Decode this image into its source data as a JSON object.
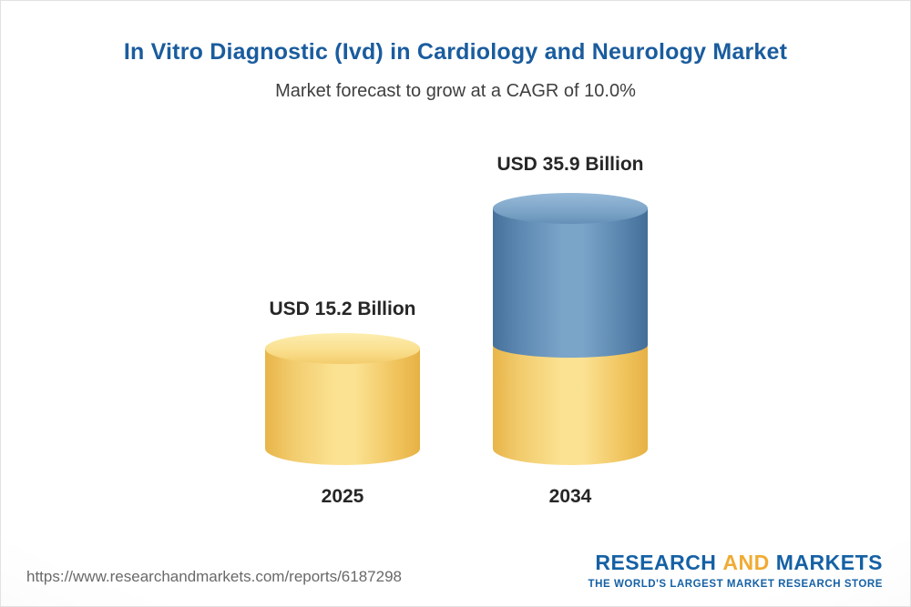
{
  "header": {
    "title": "In Vitro Diagnostic (Ivd) in Cardiology and Neurology Market",
    "subtitle": "Market forecast to grow at a CAGR of 10.0%"
  },
  "chart_data": {
    "type": "bar",
    "variant": "3d-cylinder",
    "title": "In Vitro Diagnostic (Ivd) in Cardiology and Neurology Market",
    "subtitle": "Market forecast to grow at a CAGR of 10.0%",
    "cagr_percent": 10.0,
    "unit": "USD Billion",
    "categories": [
      "2025",
      "2034"
    ],
    "values": [
      15.2,
      35.9
    ],
    "value_labels": [
      "USD 15.2 Billion",
      "USD 35.9 Billion"
    ],
    "bar_colors": [
      "#f8d77f",
      "#6493bd"
    ],
    "bar_2034_segments": {
      "base_color": "#f8d77f",
      "growth_color": "#6493bd"
    },
    "legend_position": "none",
    "grid": false,
    "axes": "none"
  },
  "footer": {
    "url": "https://www.researchandmarkets.com/reports/6187298",
    "logo": {
      "research": "RESEARCH",
      "and": "AND",
      "markets": "MARKETS",
      "tagline": "THE WORLD'S LARGEST MARKET RESEARCH STORE"
    }
  }
}
